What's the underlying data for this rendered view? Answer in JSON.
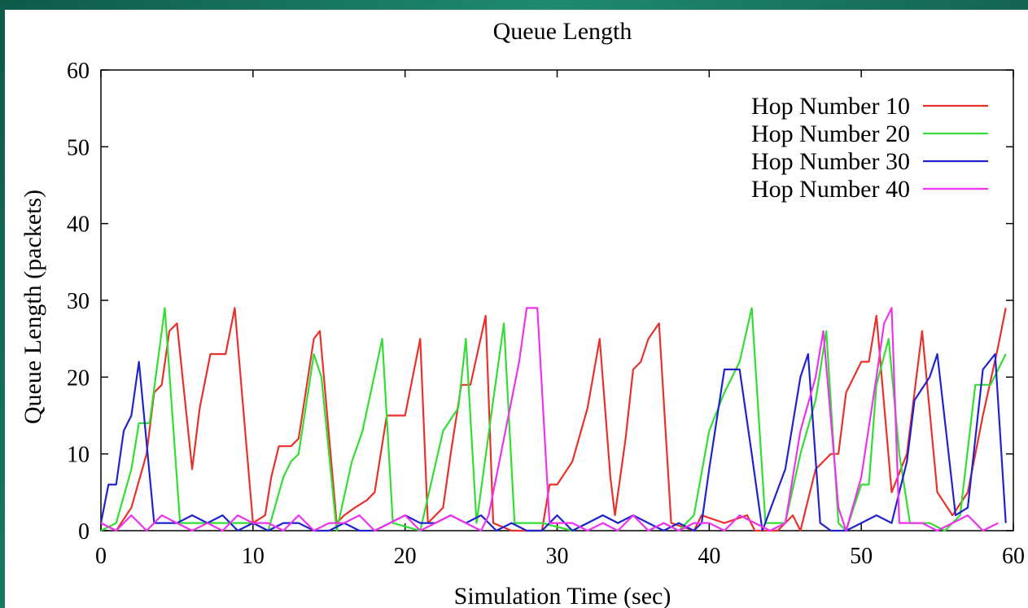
{
  "chart_data": {
    "type": "line",
    "title": "Queue Length",
    "xlabel": "Simulation Time (sec)",
    "ylabel": "Queue Length (packets)",
    "xlim": [
      0,
      60
    ],
    "ylim": [
      0,
      60
    ],
    "x_ticks": [
      0,
      10,
      20,
      30,
      40,
      50,
      60
    ],
    "y_ticks": [
      0,
      10,
      20,
      30,
      40,
      50,
      60
    ],
    "grid": false,
    "legend_position": "top-right",
    "series": [
      {
        "name": "Hop Number 10",
        "color": "#e8312a",
        "points": [
          [
            0,
            1
          ],
          [
            1,
            0
          ],
          [
            2,
            3
          ],
          [
            3,
            10
          ],
          [
            3.5,
            18
          ],
          [
            4,
            19
          ],
          [
            4.5,
            26
          ],
          [
            5,
            27
          ],
          [
            6,
            8
          ],
          [
            6.5,
            16
          ],
          [
            7.2,
            23
          ],
          [
            8.2,
            23
          ],
          [
            8.8,
            29
          ],
          [
            10,
            1
          ],
          [
            10.8,
            2
          ],
          [
            11.2,
            7
          ],
          [
            11.7,
            11
          ],
          [
            12.5,
            11
          ],
          [
            13,
            12
          ],
          [
            14,
            25
          ],
          [
            14.4,
            26
          ],
          [
            15.5,
            1
          ],
          [
            16,
            2
          ],
          [
            16.7,
            3
          ],
          [
            17.5,
            4
          ],
          [
            18,
            5
          ],
          [
            18.8,
            15
          ],
          [
            20,
            15
          ],
          [
            21,
            25
          ],
          [
            21.5,
            1
          ],
          [
            22.5,
            3
          ],
          [
            23,
            10
          ],
          [
            23.7,
            19
          ],
          [
            24.3,
            19
          ],
          [
            25.3,
            28
          ],
          [
            25.8,
            1
          ],
          [
            27,
            0
          ],
          [
            29,
            0
          ],
          [
            29.5,
            6
          ],
          [
            30,
            6
          ],
          [
            31,
            9
          ],
          [
            32,
            16
          ],
          [
            32.8,
            25
          ],
          [
            33.5,
            7
          ],
          [
            33.8,
            2
          ],
          [
            34.5,
            12
          ],
          [
            35,
            21
          ],
          [
            35.5,
            22
          ],
          [
            36,
            25
          ],
          [
            36.7,
            27
          ],
          [
            37.5,
            1
          ],
          [
            39,
            0
          ],
          [
            39.5,
            2
          ],
          [
            41,
            1
          ],
          [
            42.5,
            2
          ],
          [
            43,
            0
          ],
          [
            44.5,
            0
          ],
          [
            45,
            1
          ],
          [
            45.5,
            2
          ],
          [
            46,
            0
          ],
          [
            47,
            8
          ],
          [
            48,
            10
          ],
          [
            48.5,
            10
          ],
          [
            49,
            18
          ],
          [
            50,
            22
          ],
          [
            50.5,
            22
          ],
          [
            51,
            28
          ],
          [
            52,
            5
          ],
          [
            53,
            10
          ],
          [
            54,
            26
          ],
          [
            55,
            5
          ],
          [
            56,
            2
          ],
          [
            57,
            5
          ],
          [
            58,
            15
          ],
          [
            59,
            24
          ],
          [
            59.5,
            29
          ]
        ]
      },
      {
        "name": "Hop Number 20",
        "color": "#33dd33",
        "points": [
          [
            0,
            0
          ],
          [
            1,
            1
          ],
          [
            2,
            8
          ],
          [
            2.5,
            14
          ],
          [
            3.2,
            14
          ],
          [
            4.2,
            29
          ],
          [
            5.2,
            1
          ],
          [
            6,
            1
          ],
          [
            8,
            1
          ],
          [
            10,
            1
          ],
          [
            11,
            0
          ],
          [
            12,
            7
          ],
          [
            12.5,
            9
          ],
          [
            13,
            10
          ],
          [
            14,
            23
          ],
          [
            14.5,
            20
          ],
          [
            15.5,
            0
          ],
          [
            16.5,
            9
          ],
          [
            17.2,
            13
          ],
          [
            18.5,
            25
          ],
          [
            19.2,
            1
          ],
          [
            21,
            0
          ],
          [
            22.5,
            13
          ],
          [
            23.5,
            16
          ],
          [
            24,
            25
          ],
          [
            24.7,
            1
          ],
          [
            25.8,
            17
          ],
          [
            26.5,
            27
          ],
          [
            27.2,
            1
          ],
          [
            29,
            1
          ],
          [
            31,
            0
          ],
          [
            33,
            2
          ],
          [
            34,
            1
          ],
          [
            35,
            2
          ],
          [
            36,
            0
          ],
          [
            37,
            1
          ],
          [
            38,
            0
          ],
          [
            39,
            2
          ],
          [
            40,
            13
          ],
          [
            41,
            18
          ],
          [
            42,
            22
          ],
          [
            42.8,
            29
          ],
          [
            43.7,
            1
          ],
          [
            45,
            1
          ],
          [
            46,
            10
          ],
          [
            47,
            17
          ],
          [
            47.7,
            26
          ],
          [
            48.5,
            1
          ],
          [
            49,
            0
          ],
          [
            50,
            6
          ],
          [
            50.5,
            6
          ],
          [
            51,
            19
          ],
          [
            51.8,
            25
          ],
          [
            52.5,
            10
          ],
          [
            53.2,
            1
          ],
          [
            54.5,
            1
          ],
          [
            55.5,
            0
          ],
          [
            56.5,
            2
          ],
          [
            57.5,
            19
          ],
          [
            58.5,
            19
          ],
          [
            59.5,
            23
          ]
        ]
      },
      {
        "name": "Hop Number 30",
        "color": "#2222cc",
        "points": [
          [
            0,
            1
          ],
          [
            0.5,
            6
          ],
          [
            1,
            6
          ],
          [
            1.5,
            13
          ],
          [
            2,
            15
          ],
          [
            2.5,
            22
          ],
          [
            3.5,
            1
          ],
          [
            5,
            1
          ],
          [
            6,
            2
          ],
          [
            7,
            1
          ],
          [
            8,
            2
          ],
          [
            9,
            0
          ],
          [
            10,
            1
          ],
          [
            11,
            0
          ],
          [
            12,
            1
          ],
          [
            13,
            1
          ],
          [
            14,
            0
          ],
          [
            15,
            0
          ],
          [
            16,
            1
          ],
          [
            17,
            0
          ],
          [
            18,
            0
          ],
          [
            19,
            1
          ],
          [
            20,
            2
          ],
          [
            21,
            1
          ],
          [
            22,
            1
          ],
          [
            23,
            2
          ],
          [
            24,
            1
          ],
          [
            25,
            2
          ],
          [
            26,
            0
          ],
          [
            27,
            1
          ],
          [
            28,
            0
          ],
          [
            29,
            0
          ],
          [
            30,
            2
          ],
          [
            31,
            0
          ],
          [
            32,
            1
          ],
          [
            33,
            2
          ],
          [
            34,
            1
          ],
          [
            35,
            2
          ],
          [
            36,
            1
          ],
          [
            37,
            0
          ],
          [
            38,
            1
          ],
          [
            39,
            0
          ],
          [
            39.5,
            1
          ],
          [
            40,
            8
          ],
          [
            41,
            21
          ],
          [
            42,
            21
          ],
          [
            42.8,
            10
          ],
          [
            43.5,
            0
          ],
          [
            45,
            8
          ],
          [
            46,
            20
          ],
          [
            46.5,
            23
          ],
          [
            47.3,
            1
          ],
          [
            48,
            0
          ],
          [
            49,
            0
          ],
          [
            50,
            1
          ],
          [
            51,
            2
          ],
          [
            52,
            1
          ],
          [
            53,
            9
          ],
          [
            53.5,
            17
          ],
          [
            54.5,
            20
          ],
          [
            55,
            23
          ],
          [
            56.2,
            2
          ],
          [
            57,
            3
          ],
          [
            58,
            21
          ],
          [
            58.8,
            23
          ],
          [
            59.5,
            1
          ]
        ]
      },
      {
        "name": "Hop Number 40",
        "color": "#ee33ee",
        "points": [
          [
            0,
            1
          ],
          [
            1,
            0
          ],
          [
            2,
            2
          ],
          [
            3,
            0
          ],
          [
            4,
            2
          ],
          [
            5,
            1
          ],
          [
            6,
            0
          ],
          [
            7,
            1
          ],
          [
            8,
            0
          ],
          [
            9,
            2
          ],
          [
            10,
            1
          ],
          [
            11,
            1
          ],
          [
            12,
            0
          ],
          [
            13,
            2
          ],
          [
            14,
            0
          ],
          [
            15,
            1
          ],
          [
            16,
            1
          ],
          [
            17,
            2
          ],
          [
            18,
            0
          ],
          [
            19,
            1
          ],
          [
            20,
            2
          ],
          [
            21,
            0
          ],
          [
            22,
            1
          ],
          [
            23,
            2
          ],
          [
            24,
            1
          ],
          [
            25,
            0
          ],
          [
            25.5,
            2
          ],
          [
            26.5,
            12
          ],
          [
            27,
            17
          ],
          [
            27.5,
            22
          ],
          [
            28,
            29
          ],
          [
            28.7,
            29
          ],
          [
            29.5,
            1
          ],
          [
            31,
            1
          ],
          [
            32,
            0
          ],
          [
            33,
            1
          ],
          [
            34,
            0
          ],
          [
            35,
            2
          ],
          [
            36,
            0
          ],
          [
            37,
            1
          ],
          [
            38,
            0
          ],
          [
            39,
            1
          ],
          [
            40,
            1
          ],
          [
            41,
            0
          ],
          [
            42,
            2
          ],
          [
            43,
            1
          ],
          [
            44,
            0
          ],
          [
            45,
            1
          ],
          [
            46,
            13
          ],
          [
            47,
            20
          ],
          [
            47.5,
            26
          ],
          [
            48.5,
            3
          ],
          [
            49,
            0
          ],
          [
            50,
            7
          ],
          [
            51,
            20
          ],
          [
            51.5,
            27
          ],
          [
            52,
            29
          ],
          [
            52.5,
            1
          ],
          [
            54,
            1
          ],
          [
            55,
            0
          ],
          [
            56,
            1
          ],
          [
            57,
            2
          ],
          [
            58,
            0
          ],
          [
            59,
            1
          ]
        ]
      }
    ]
  }
}
